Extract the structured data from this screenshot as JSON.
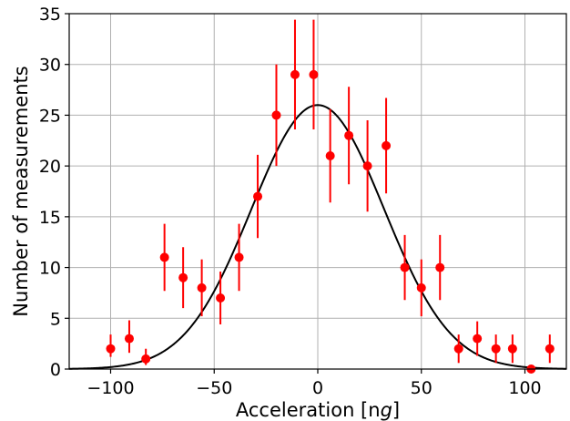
{
  "chart_data": {
    "type": "scatter",
    "xlabel_main": "Acceleration [n",
    "xlabel_italic": "g",
    "xlabel_end": "]",
    "ylabel": "Number of measurements",
    "xlim": [
      -120,
      120
    ],
    "ylim": [
      0,
      35
    ],
    "x_ticks": [
      -100,
      -50,
      0,
      50,
      100
    ],
    "x_tick_labels": [
      "−100",
      "−50",
      "0",
      "50",
      "100"
    ],
    "y_ticks": [
      0,
      5,
      10,
      15,
      20,
      25,
      30,
      35
    ],
    "y_tick_labels": [
      "0",
      "5",
      "10",
      "15",
      "20",
      "25",
      "30",
      "35"
    ],
    "grid": true,
    "colors": {
      "points": "#ff0000",
      "fit": "#000000",
      "grid": "#b0b0b0"
    },
    "series": [
      {
        "type": "errorbar",
        "points": [
          {
            "x": -100,
            "y": 2,
            "err_low": 0.8,
            "err_high": 1.4
          },
          {
            "x": -91,
            "y": 3,
            "err_low": 1.4,
            "err_high": 1.8
          },
          {
            "x": -83,
            "y": 1,
            "err_low": 0.6,
            "err_high": 1.0
          },
          {
            "x": -74,
            "y": 11,
            "err_low": 3.3,
            "err_high": 3.3
          },
          {
            "x": -65,
            "y": 9,
            "err_low": 3.0,
            "err_high": 3.0
          },
          {
            "x": -56,
            "y": 8,
            "err_low": 2.8,
            "err_high": 2.8
          },
          {
            "x": -47,
            "y": 7,
            "err_low": 2.6,
            "err_high": 2.6
          },
          {
            "x": -38,
            "y": 11,
            "err_low": 3.3,
            "err_high": 3.3
          },
          {
            "x": -29,
            "y": 17,
            "err_low": 4.1,
            "err_high": 4.1
          },
          {
            "x": -20,
            "y": 25,
            "err_low": 5.0,
            "err_high": 5.0
          },
          {
            "x": -11,
            "y": 29,
            "err_low": 5.4,
            "err_high": 5.4
          },
          {
            "x": -2,
            "y": 29,
            "err_low": 5.4,
            "err_high": 5.4
          },
          {
            "x": 6,
            "y": 21,
            "err_low": 4.6,
            "err_high": 4.6
          },
          {
            "x": 15,
            "y": 23,
            "err_low": 4.8,
            "err_high": 4.8
          },
          {
            "x": 24,
            "y": 20,
            "err_low": 4.5,
            "err_high": 4.5
          },
          {
            "x": 33,
            "y": 22,
            "err_low": 4.7,
            "err_high": 4.7
          },
          {
            "x": 42,
            "y": 10,
            "err_low": 3.2,
            "err_high": 3.2
          },
          {
            "x": 50,
            "y": 8,
            "err_low": 2.8,
            "err_high": 2.8
          },
          {
            "x": 59,
            "y": 10,
            "err_low": 3.2,
            "err_high": 3.2
          },
          {
            "x": 68,
            "y": 2,
            "err_low": 1.4,
            "err_high": 1.4
          },
          {
            "x": 77,
            "y": 3,
            "err_low": 1.7,
            "err_high": 1.7
          },
          {
            "x": 86,
            "y": 2,
            "err_low": 1.4,
            "err_high": 1.4
          },
          {
            "x": 94,
            "y": 2,
            "err_low": 1.4,
            "err_high": 1.4
          },
          {
            "x": 103,
            "y": 0,
            "err_low": 0,
            "err_high": 0
          },
          {
            "x": 112,
            "y": 2,
            "err_low": 1.4,
            "err_high": 1.4
          }
        ]
      },
      {
        "type": "gaussian-fit",
        "amplitude": 26,
        "mean": 0,
        "sigma": 32
      }
    ]
  }
}
